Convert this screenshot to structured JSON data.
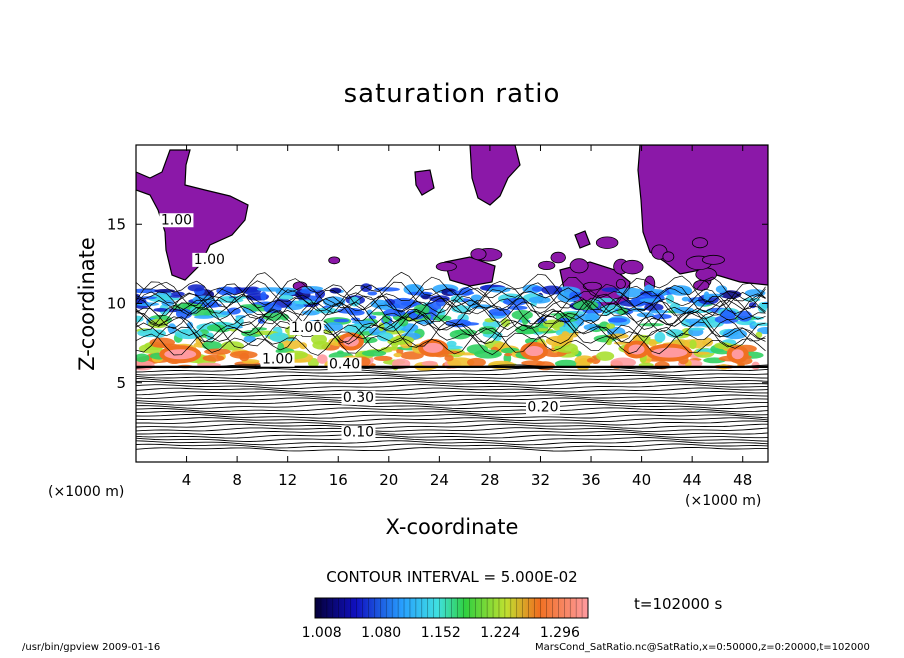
{
  "chart_data": {
    "type": "heatmap",
    "title": "saturation ratio",
    "xlabel": "X-coordinate",
    "ylabel": "Z-coordinate",
    "x_unit": "(×1000 m)",
    "z_unit": "(×1000 m)",
    "xlim": [
      0,
      50
    ],
    "zlim": [
      0,
      20
    ],
    "x_ticks": [
      "4",
      "8",
      "12",
      "16",
      "20",
      "24",
      "28",
      "32",
      "36",
      "40",
      "44",
      "48"
    ],
    "z_ticks": [
      "5",
      "10",
      "15"
    ],
    "contour_interval_text": "CONTOUR INTERVAL = 5.000E-02",
    "contour_labels": [
      {
        "text": "1.00",
        "x": 3.2,
        "z": 15.0
      },
      {
        "text": "1.00",
        "x": 5.8,
        "z": 12.5
      },
      {
        "text": "1.00",
        "x": 13.5,
        "z": 8.2
      },
      {
        "text": "1.00",
        "x": 11.2,
        "z": 6.2
      },
      {
        "text": "0.10",
        "x": 17.6,
        "z": 1.6
      },
      {
        "text": "0.20",
        "x": 32.2,
        "z": 3.2
      },
      {
        "text": "0.30",
        "x": 17.6,
        "z": 3.8
      },
      {
        "text": "0.40",
        "x": 16.5,
        "z": 5.9
      }
    ],
    "colorbar": {
      "ticks": [
        "1.008",
        "1.080",
        "1.152",
        "1.224",
        "1.296"
      ],
      "range": [
        1.0,
        1.33
      ]
    },
    "regions": {
      "supersaturated_band_z": [
        6,
        11
      ],
      "max_saturation_band_z": [
        6,
        7.5
      ],
      "above_scale_color": "#8b18a8",
      "low_values_contour_band_z": [
        0,
        6
      ]
    },
    "time_label": "t=102000 s",
    "footer_left": "/usr/bin/gpview   2009-01-16",
    "footer_right": "MarsCond_SatRatio.nc@SatRatio,x=0:50000,z=0:20000,t=102000",
    "colors": {
      "above_scale": "#8b18a8",
      "background": "#ffffff",
      "contour": "#000000"
    }
  }
}
